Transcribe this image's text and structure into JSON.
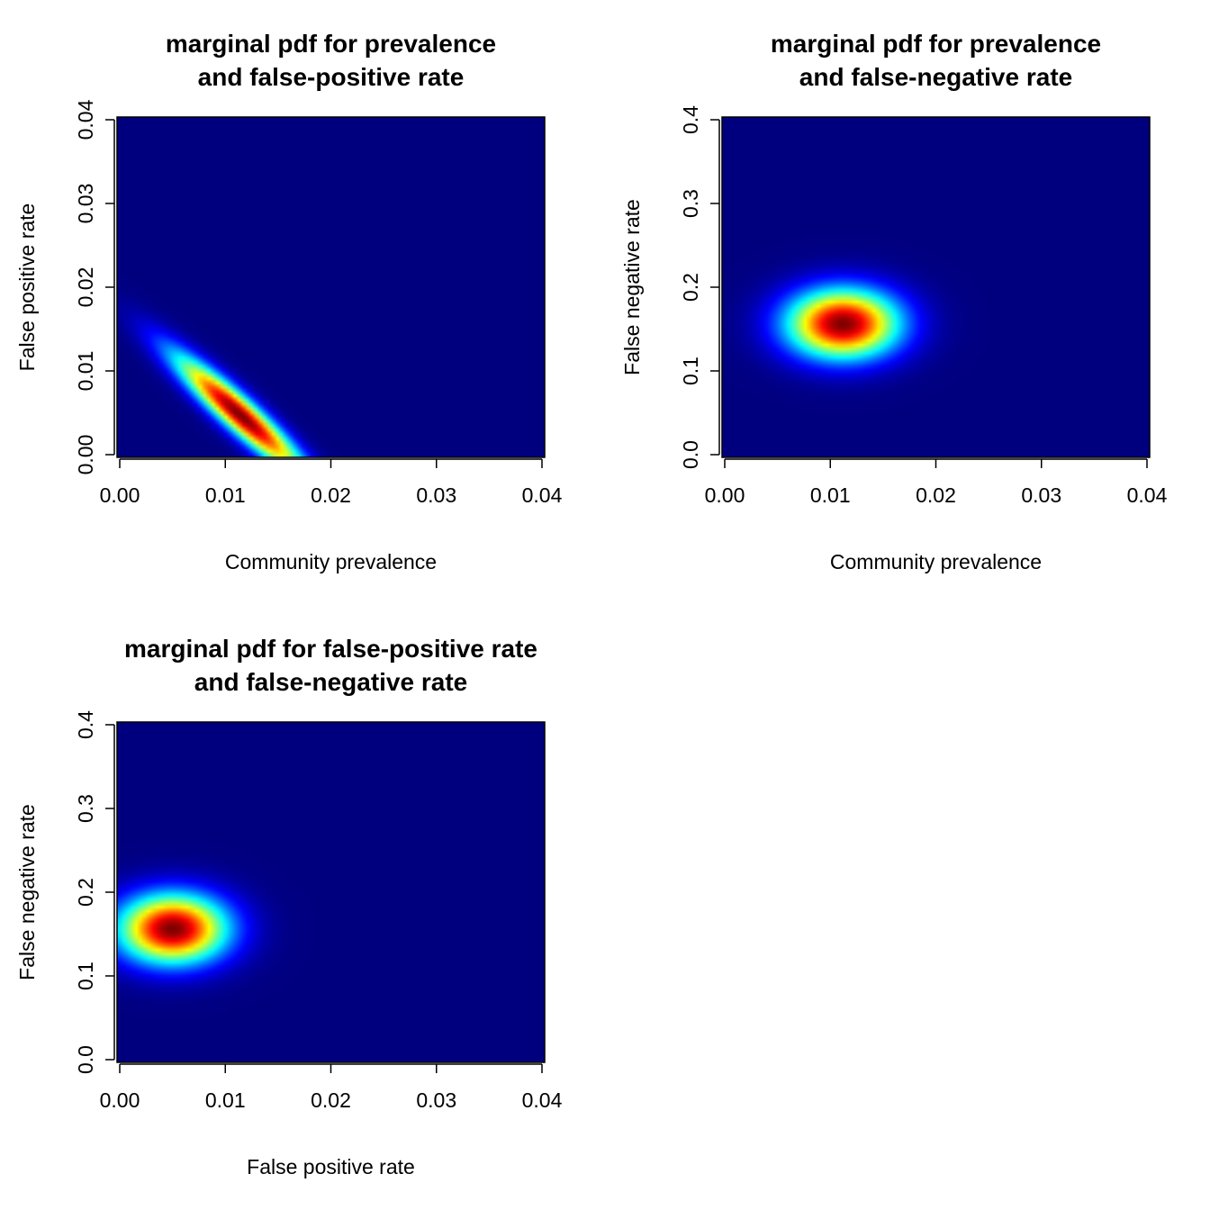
{
  "chart_data": [
    {
      "type": "heatmap",
      "title": [
        "marginal pdf for prevalence",
        "and false-positive rate"
      ],
      "xlabel": "Community prevalence",
      "ylabel": "False positive rate",
      "xlim": [
        0,
        0.04
      ],
      "ylim": [
        0,
        0.04
      ],
      "xticks": [
        "0.00",
        "0.01",
        "0.02",
        "0.03",
        "0.04"
      ],
      "yticks": [
        "0.00",
        "0.01",
        "0.02",
        "0.03",
        "0.04"
      ],
      "colormap": [
        "#00007F",
        "#0000FF",
        "#007FFF",
        "#00FFFF",
        "#7FFF7F",
        "#FFFF00",
        "#FF7F00",
        "#FF0000",
        "#7F0000"
      ],
      "density": {
        "kind": "gaussian",
        "mean": [
          0.0115,
          0.005
        ],
        "sd": [
          0.0042,
          0.0048
        ],
        "correlation": -0.93
      }
    },
    {
      "type": "heatmap",
      "title": [
        "marginal pdf for prevalence",
        "and false-negative rate"
      ],
      "xlabel": "Community prevalence",
      "ylabel": "False negative rate",
      "xlim": [
        0,
        0.04
      ],
      "ylim": [
        0,
        0.4
      ],
      "xticks": [
        "0.00",
        "0.01",
        "0.02",
        "0.03",
        "0.04"
      ],
      "yticks": [
        "0.0",
        "0.1",
        "0.2",
        "0.3",
        "0.4"
      ],
      "colormap": [
        "#00007F",
        "#0000FF",
        "#007FFF",
        "#00FFFF",
        "#7FFF7F",
        "#FFFF00",
        "#FF7F00",
        "#FF0000",
        "#7F0000"
      ],
      "density": {
        "kind": "gaussian",
        "mean": [
          0.0113,
          0.157
        ],
        "sd": [
          0.0036,
          0.028
        ],
        "correlation": 0.0
      }
    },
    {
      "type": "heatmap",
      "title": [
        "marginal pdf for false-positive rate",
        "and false-negative rate"
      ],
      "xlabel": "False positive rate",
      "ylabel": "False negative rate",
      "xlim": [
        0,
        0.04
      ],
      "ylim": [
        0,
        0.4
      ],
      "xticks": [
        "0.00",
        "0.01",
        "0.02",
        "0.03",
        "0.04"
      ],
      "yticks": [
        "0.0",
        "0.1",
        "0.2",
        "0.3",
        "0.4"
      ],
      "colormap": [
        "#00007F",
        "#0000FF",
        "#007FFF",
        "#00FFFF",
        "#7FFF7F",
        "#FFFF00",
        "#FF7F00",
        "#FF0000",
        "#7F0000"
      ],
      "density": {
        "kind": "gaussian",
        "mean": [
          0.0052,
          0.157
        ],
        "sd": [
          0.0035,
          0.028
        ],
        "correlation": 0.0
      }
    }
  ]
}
